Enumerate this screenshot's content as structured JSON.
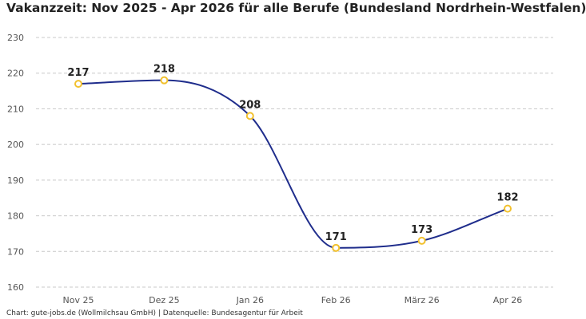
{
  "chart_data": {
    "type": "line",
    "title": "Vakanzzeit: Nov 2025 - Apr 2026 für alle Berufe (Bundesland Nordrhein-Westfalen)",
    "categories": [
      "Nov 25",
      "Dez 25",
      "Jan 26",
      "Feb 26",
      "März 26",
      "Apr 26"
    ],
    "series": [
      {
        "values": [
          217,
          218,
          208,
          171,
          173,
          182
        ]
      }
    ],
    "data_labels": [
      "217",
      "218",
      "208",
      "171",
      "173",
      "182"
    ],
    "yticks": [
      160,
      170,
      180,
      190,
      200,
      210,
      220,
      230
    ],
    "ylim": [
      160,
      230
    ],
    "xlabel": "",
    "ylabel": "",
    "grid": true,
    "line_color": "#1f2d8c",
    "marker_color": "#f2c12e",
    "source": "Chart: gute-jobs.de (Wollmilchsau GmbH) | Datenquelle: Bundesagentur für Arbeit"
  }
}
